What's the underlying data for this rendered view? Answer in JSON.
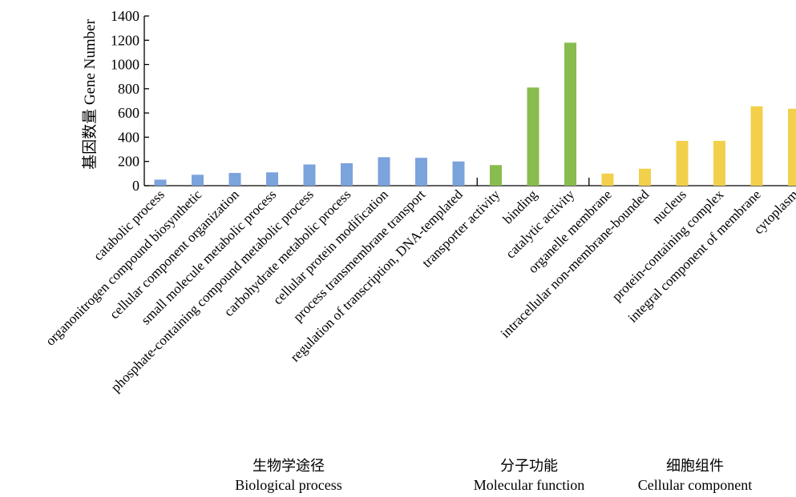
{
  "chart_data": {
    "type": "bar",
    "ylabel": "基因数量 Gene Number",
    "ylim": [
      0,
      1400
    ],
    "yticks": [
      0,
      200,
      400,
      600,
      800,
      1000,
      1200,
      1400
    ],
    "grid": false,
    "categories": [
      "catabolic process",
      "organonitrogen compound biosynthetic",
      "cellular component organization",
      "small molecule metabolic process",
      "phosphate-containing compound metabolic process",
      "carbohydrate metabolic process",
      "cellular protein modification",
      "process transmembrane transport",
      "regulation of transcription, DNA-templated",
      "transporter activity",
      "binding",
      "catalytic activity",
      "organelle membrane",
      "intracellular non-membrane-bounded",
      "nucleus",
      "protein-containing complex",
      "integral component of membrane",
      "cytoplasm"
    ],
    "values": [
      50,
      90,
      105,
      110,
      175,
      185,
      235,
      230,
      200,
      170,
      810,
      1180,
      100,
      140,
      370,
      370,
      655,
      635
    ],
    "groups": [
      {
        "cn": "生物学途径",
        "en": "Biological process",
        "start": 0,
        "end": 8,
        "color": "#7ba3dc"
      },
      {
        "cn": "分子功能",
        "en": "Molecular function",
        "start": 9,
        "end": 11,
        "color": "#88bc4f"
      },
      {
        "cn": "细胞组件",
        "en": "Cellular component",
        "start": 12,
        "end": 17,
        "color": "#f2d04b"
      }
    ]
  }
}
